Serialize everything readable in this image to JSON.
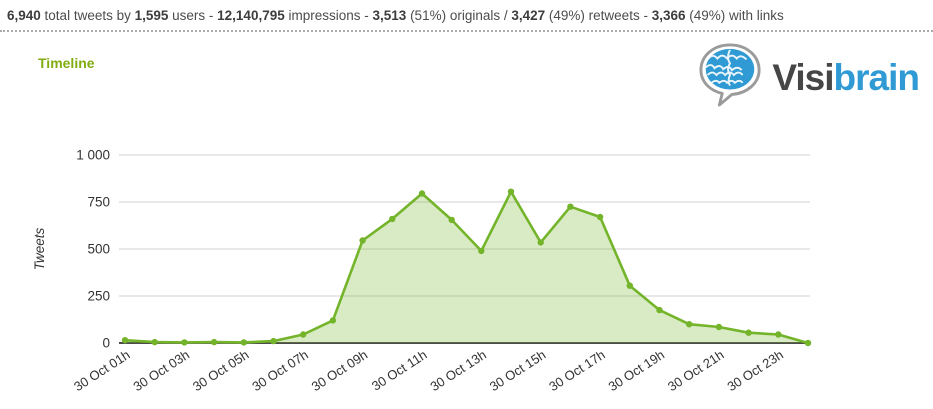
{
  "stats_bar": {
    "parts": [
      {
        "text": "6,940",
        "bold": true
      },
      {
        "text": " total tweets by ",
        "bold": false
      },
      {
        "text": "1,595",
        "bold": true
      },
      {
        "text": " users - ",
        "bold": false
      },
      {
        "text": "12,140,795",
        "bold": true
      },
      {
        "text": " impressions - ",
        "bold": false
      },
      {
        "text": "3,513",
        "bold": true
      },
      {
        "text": " (51%) originals / ",
        "bold": false
      },
      {
        "text": "3,427",
        "bold": true
      },
      {
        "text": " (49%) retweets - ",
        "bold": false
      },
      {
        "text": "3,366",
        "bold": true
      },
      {
        "text": " (49%) with links",
        "bold": false
      }
    ]
  },
  "header": {
    "title": "Timeline",
    "title_color": "#80ad10"
  },
  "logo": {
    "icon": "brain-speech-bubble-icon",
    "word_primary": "Visi",
    "word_secondary": "brain",
    "primary_color": "#464646",
    "secondary_color": "#2f9ad4",
    "bubble_outline_color": "#9b9b9b"
  },
  "chart_data": {
    "type": "area",
    "title": "Timeline",
    "xlabel": "",
    "ylabel": "Tweets",
    "ylim": [
      0,
      1000
    ],
    "yticks": [
      0,
      250,
      500,
      750,
      1000
    ],
    "ytick_labels": [
      "0",
      "250",
      "500",
      "750",
      "1 000"
    ],
    "xtick_labels": [
      "30 Oct 01h",
      "30 Oct 03h",
      "30 Oct 05h",
      "30 Oct 07h",
      "30 Oct 09h",
      "30 Oct 11h",
      "30 Oct 13h",
      "30 Oct 15h",
      "30 Oct 17h",
      "30 Oct 19h",
      "30 Oct 21h",
      "30 Oct 23h"
    ],
    "xtick_every": 2,
    "grid": true,
    "legend_position": "none",
    "series": [
      {
        "name": "Tweets",
        "values": [
          15,
          5,
          3,
          5,
          3,
          10,
          45,
          120,
          545,
          660,
          795,
          655,
          490,
          805,
          535,
          725,
          670,
          305,
          175,
          100,
          85,
          55,
          45,
          0
        ]
      }
    ],
    "line_color": "#74b42a",
    "fill_color": "rgba(118,184,42,0.28)",
    "grid_color": "#d9d9d9",
    "axis_color": "#333333"
  }
}
